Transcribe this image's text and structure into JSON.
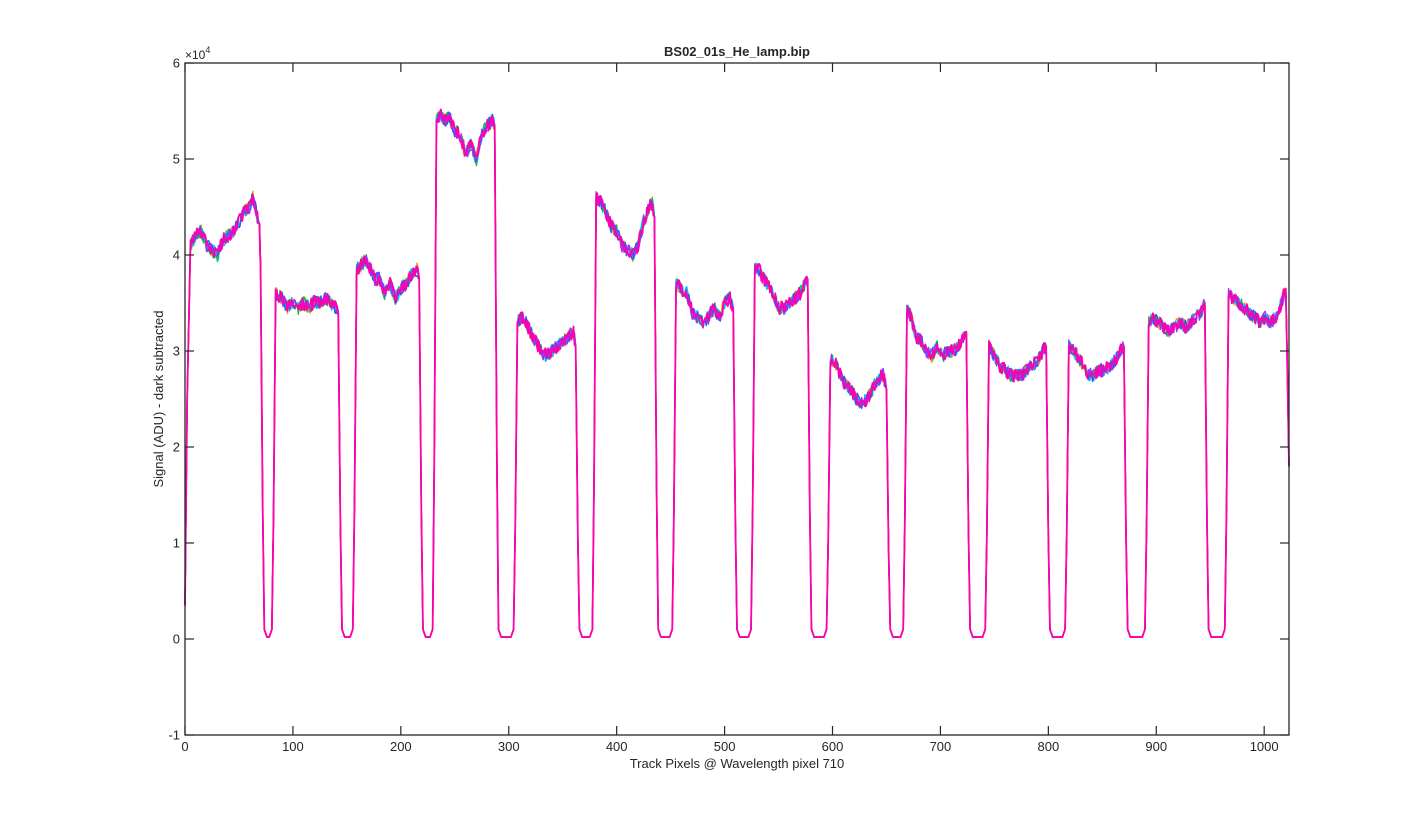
{
  "chart_data": {
    "type": "line",
    "title": "BS02_01s_He_lamp.bip",
    "xlabel": "Track Pixels @ Wavelength pixel 710",
    "ylabel": "Signal (ADU) - dark subtracted",
    "y_exponent_label": "×10",
    "y_exponent_power": "4",
    "xlim": [
      0,
      1023
    ],
    "ylim": [
      -1,
      6
    ],
    "y_units_multiplier": 10000,
    "xticks": [
      0,
      100,
      200,
      300,
      400,
      500,
      600,
      700,
      800,
      900,
      1000
    ],
    "xtick_labels": [
      "0",
      "100",
      "200",
      "300",
      "400",
      "500",
      "600",
      "700",
      "800",
      "900",
      "1000"
    ],
    "yticks": [
      -1,
      0,
      1,
      2,
      3,
      4,
      5,
      6
    ],
    "ytick_labels": [
      "-1",
      "0",
      "1",
      "2",
      "3",
      "4",
      "5",
      "6"
    ],
    "grid": false,
    "box": true,
    "series_colors": [
      "#ff9900",
      "#00cc33",
      "#00bfff",
      "#3355ee",
      "#9933ff",
      "#ff00aa"
    ],
    "segments": [
      {
        "x": [
          0,
          2,
          5,
          10,
          15,
          20,
          25,
          30,
          35,
          40,
          45,
          50,
          55,
          60,
          63,
          66,
          69,
          70
        ],
        "y": [
          0.35,
          2.5,
          4.1,
          4.2,
          4.25,
          4.1,
          4.05,
          4.0,
          4.15,
          4.2,
          4.25,
          4.35,
          4.45,
          4.5,
          4.6,
          4.45,
          4.3,
          3.9
        ]
      },
      {
        "x": [
          84,
          90,
          95,
          100,
          105,
          110,
          115,
          120,
          125,
          130,
          135,
          140,
          142
        ],
        "y": [
          3.6,
          3.55,
          3.45,
          3.5,
          3.45,
          3.5,
          3.45,
          3.52,
          3.5,
          3.55,
          3.5,
          3.45,
          3.4
        ]
      },
      {
        "x": [
          159,
          163,
          168,
          172,
          176,
          180,
          185,
          190,
          195,
          200,
          205,
          210,
          215,
          217
        ],
        "y": [
          3.85,
          3.9,
          3.95,
          3.85,
          3.75,
          3.75,
          3.6,
          3.7,
          3.55,
          3.65,
          3.7,
          3.8,
          3.85,
          3.75
        ]
      },
      {
        "x": [
          233,
          237,
          241,
          245,
          250,
          255,
          260,
          265,
          270,
          275,
          280,
          285,
          287
        ],
        "y": [
          5.4,
          5.45,
          5.4,
          5.45,
          5.3,
          5.25,
          5.05,
          5.15,
          5.0,
          5.25,
          5.35,
          5.4,
          5.35
        ]
      },
      {
        "x": [
          308,
          312,
          316,
          320,
          325,
          330,
          335,
          340,
          345,
          350,
          355,
          360,
          362
        ],
        "y": [
          3.3,
          3.35,
          3.3,
          3.2,
          3.1,
          3.0,
          2.95,
          3.0,
          3.05,
          3.1,
          3.15,
          3.2,
          3.05
        ]
      },
      {
        "x": [
          381,
          385,
          390,
          395,
          400,
          405,
          410,
          415,
          420,
          425,
          430,
          433,
          435
        ],
        "y": [
          4.6,
          4.55,
          4.45,
          4.3,
          4.25,
          4.1,
          4.05,
          4.0,
          4.1,
          4.35,
          4.5,
          4.55,
          4.4
        ]
      },
      {
        "x": [
          455,
          460,
          465,
          470,
          475,
          480,
          485,
          490,
          495,
          500,
          505,
          508
        ],
        "y": [
          3.7,
          3.65,
          3.6,
          3.4,
          3.35,
          3.3,
          3.35,
          3.45,
          3.35,
          3.5,
          3.55,
          3.45
        ]
      },
      {
        "x": [
          528,
          532,
          536,
          540,
          545,
          550,
          555,
          560,
          565,
          570,
          575,
          577
        ],
        "y": [
          3.85,
          3.85,
          3.75,
          3.7,
          3.6,
          3.45,
          3.45,
          3.5,
          3.55,
          3.6,
          3.7,
          3.75
        ]
      },
      {
        "x": [
          598,
          602,
          607,
          612,
          617,
          622,
          627,
          632,
          637,
          642,
          647,
          650
        ],
        "y": [
          2.9,
          2.9,
          2.75,
          2.65,
          2.6,
          2.5,
          2.45,
          2.5,
          2.6,
          2.7,
          2.75,
          2.6
        ]
      },
      {
        "x": [
          669,
          673,
          677,
          682,
          687,
          692,
          697,
          702,
          707,
          712,
          717,
          722,
          724
        ],
        "y": [
          3.45,
          3.35,
          3.15,
          3.1,
          3.0,
          2.95,
          3.05,
          2.95,
          3.0,
          3.0,
          3.05,
          3.15,
          3.2
        ]
      },
      {
        "x": [
          745,
          750,
          755,
          760,
          765,
          770,
          775,
          780,
          785,
          790,
          795,
          798
        ],
        "y": [
          3.05,
          2.95,
          2.85,
          2.8,
          2.75,
          2.75,
          2.75,
          2.8,
          2.85,
          2.9,
          3.0,
          3.05
        ]
      },
      {
        "x": [
          819,
          823,
          827,
          832,
          837,
          842,
          847,
          852,
          857,
          862,
          867,
          870
        ],
        "y": [
          3.05,
          3.0,
          2.95,
          2.85,
          2.75,
          2.75,
          2.8,
          2.8,
          2.85,
          2.9,
          3.0,
          3.05
        ]
      },
      {
        "x": [
          893,
          897,
          902,
          907,
          912,
          917,
          922,
          927,
          932,
          937,
          942,
          945
        ],
        "y": [
          3.3,
          3.35,
          3.3,
          3.25,
          3.2,
          3.25,
          3.3,
          3.25,
          3.3,
          3.35,
          3.4,
          3.5
        ]
      },
      {
        "x": [
          967,
          971,
          976,
          981,
          986,
          991,
          996,
          1001,
          1006,
          1011,
          1016,
          1020
        ],
        "y": [
          3.6,
          3.55,
          3.5,
          3.45,
          3.4,
          3.35,
          3.3,
          3.35,
          3.3,
          3.35,
          3.5,
          3.65
        ]
      }
    ],
    "final_drop": {
      "x": [
        1020,
        1021,
        1023
      ],
      "y": [
        3.65,
        3.1,
        1.8
      ]
    },
    "baseline_value": 0.02
  }
}
